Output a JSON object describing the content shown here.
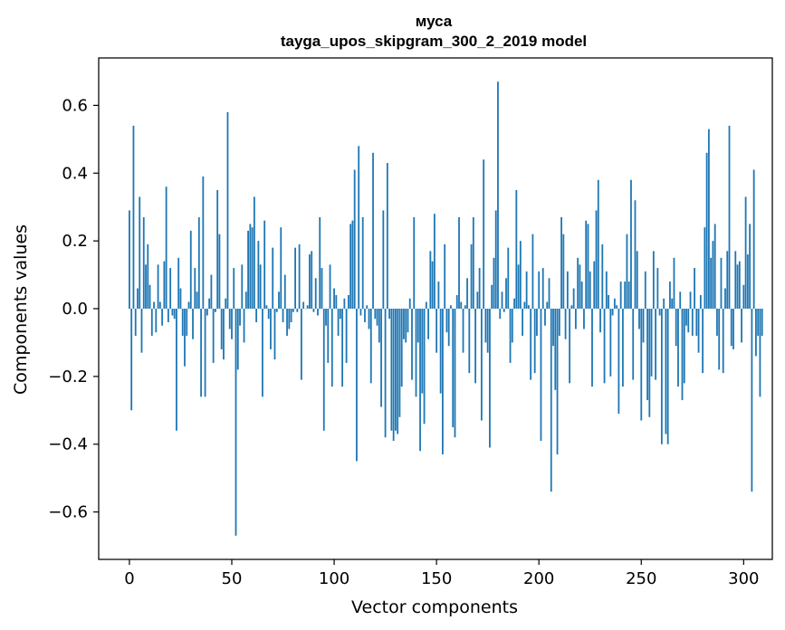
{
  "chart_data": {
    "type": "bar",
    "title": "муса",
    "subtitle": "tayga_upos_skipgram_300_2_2019 model",
    "xlabel": "Vector components",
    "ylabel": "Components values",
    "xlim": [
      -15,
      314
    ],
    "ylim": [
      -0.74,
      0.74
    ],
    "xticks": [
      0,
      50,
      100,
      150,
      200,
      250,
      300
    ],
    "xtick_labels": [
      "0",
      "50",
      "100",
      "150",
      "200",
      "250",
      "300"
    ],
    "yticks": [
      -0.6,
      -0.4,
      -0.2,
      0.0,
      0.2,
      0.4,
      0.6
    ],
    "ytick_labels": [
      "−0.6",
      "−0.4",
      "−0.2",
      "0.0",
      "0.2",
      "0.4",
      "0.6"
    ],
    "bar_color": "#1f77b4",
    "categories_start": 0,
    "values": [
      0.29,
      -0.3,
      0.54,
      -0.08,
      0.06,
      0.33,
      -0.13,
      0.27,
      0.13,
      0.19,
      0.07,
      -0.08,
      0.02,
      -0.07,
      0.13,
      0.02,
      -0.05,
      0.14,
      0.36,
      -0.04,
      0.12,
      -0.02,
      -0.03,
      -0.36,
      0.15,
      0.06,
      -0.08,
      -0.17,
      -0.08,
      0.02,
      0.23,
      -0.09,
      0.12,
      0.05,
      0.27,
      -0.26,
      0.39,
      -0.26,
      -0.02,
      0.03,
      0.1,
      -0.16,
      -0.01,
      0.35,
      0.22,
      -0.12,
      -0.15,
      0.03,
      0.58,
      -0.06,
      -0.09,
      0.12,
      -0.67,
      -0.18,
      -0.05,
      0.13,
      -0.1,
      0.05,
      0.23,
      0.25,
      0.24,
      0.33,
      -0.04,
      0.2,
      0.13,
      -0.26,
      0.26,
      0.01,
      -0.03,
      -0.12,
      0.18,
      -0.15,
      -0.01,
      0.05,
      0.24,
      -0.04,
      0.1,
      -0.08,
      -0.06,
      -0.04,
      -0.01,
      0.18,
      -0.01,
      0.19,
      -0.21,
      0.02,
      0.0,
      0.01,
      0.16,
      0.17,
      -0.01,
      0.09,
      -0.02,
      0.27,
      0.12,
      -0.36,
      -0.05,
      -0.16,
      0.13,
      -0.23,
      0.06,
      0.04,
      -0.08,
      -0.03,
      -0.23,
      0.03,
      -0.16,
      0.04,
      0.25,
      0.26,
      0.41,
      -0.45,
      0.48,
      -0.02,
      0.27,
      -0.04,
      0.01,
      -0.06,
      -0.22,
      0.46,
      -0.03,
      -0.05,
      -0.1,
      -0.29,
      0.29,
      -0.38,
      0.43,
      -0.03,
      -0.36,
      -0.39,
      -0.36,
      -0.37,
      -0.32,
      -0.23,
      -0.09,
      -0.1,
      -0.07,
      0.03,
      -0.21,
      0.27,
      -0.26,
      -0.1,
      -0.42,
      -0.25,
      -0.34,
      0.02,
      -0.09,
      0.17,
      0.14,
      0.28,
      -0.13,
      0.08,
      -0.25,
      -0.43,
      0.19,
      -0.07,
      -0.11,
      0.01,
      -0.35,
      -0.38,
      0.04,
      0.27,
      0.02,
      -0.13,
      0.01,
      0.09,
      -0.19,
      0.19,
      0.27,
      -0.22,
      0.05,
      0.12,
      -0.33,
      0.44,
      -0.1,
      -0.13,
      -0.41,
      0.07,
      0.15,
      0.29,
      0.67,
      -0.03,
      0.05,
      -0.01,
      0.09,
      0.18,
      -0.16,
      -0.1,
      0.03,
      0.35,
      0.13,
      0.2,
      -0.08,
      0.02,
      0.11,
      0.01,
      -0.21,
      0.22,
      -0.19,
      -0.08,
      0.11,
      -0.39,
      0.12,
      -0.05,
      0.02,
      0.09,
      -0.54,
      -0.11,
      -0.24,
      -0.43,
      -0.08,
      0.27,
      0.22,
      -0.09,
      0.11,
      -0.22,
      0.01,
      0.06,
      -0.06,
      0.15,
      0.13,
      0.08,
      -0.06,
      0.26,
      0.25,
      0.11,
      -0.23,
      0.14,
      0.29,
      0.38,
      -0.07,
      0.19,
      -0.22,
      0.11,
      0.04,
      -0.2,
      -0.02,
      0.03,
      0.01,
      -0.31,
      0.08,
      -0.23,
      0.08,
      0.22,
      0.08,
      0.38,
      -0.21,
      0.32,
      0.17,
      -0.06,
      -0.33,
      -0.1,
      0.11,
      -0.27,
      -0.32,
      -0.2,
      0.17,
      -0.21,
      0.12,
      -0.02,
      -0.4,
      0.03,
      -0.37,
      -0.4,
      0.08,
      0.03,
      0.15,
      -0.11,
      -0.23,
      0.05,
      -0.27,
      -0.22,
      -0.05,
      -0.07,
      0.05,
      -0.08,
      0.12,
      -0.08,
      -0.13,
      0.04,
      -0.19,
      0.24,
      0.46,
      0.53,
      0.15,
      0.2,
      0.25,
      -0.08,
      -0.18,
      0.15,
      -0.19,
      0.06,
      0.17,
      0.54,
      -0.11,
      -0.12,
      0.17,
      0.13,
      0.14,
      -0.1,
      0.07,
      0.33,
      0.16,
      0.25,
      -0.54,
      0.41,
      -0.14,
      -0.08,
      -0.26,
      -0.08
    ]
  }
}
